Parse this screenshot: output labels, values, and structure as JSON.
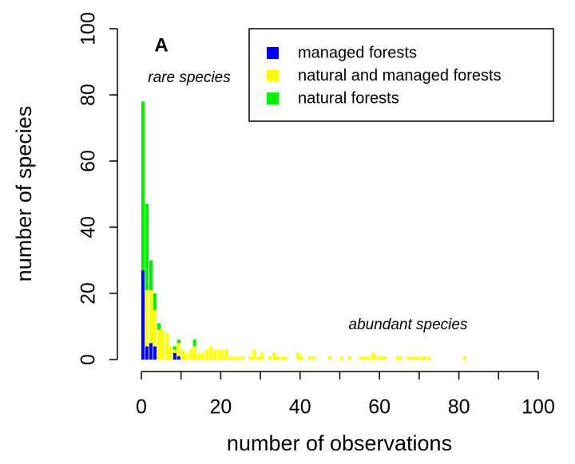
{
  "chart_data": {
    "type": "histogram",
    "title": "A",
    "annotations": [
      "rare species",
      "abundant species"
    ],
    "x_label": "number of observations",
    "y_label": "number of species",
    "bins": [
      0,
      1,
      2,
      3,
      4,
      5,
      6,
      7,
      8,
      9,
      10,
      11,
      12,
      13,
      14,
      15,
      16,
      17,
      18,
      19,
      20,
      21,
      22,
      23,
      24,
      25,
      26,
      27,
      28,
      29,
      30,
      31,
      32,
      33,
      34,
      35,
      36,
      37,
      38,
      39,
      40,
      41,
      42,
      43,
      44,
      45,
      46,
      47,
      48,
      49,
      50,
      51,
      52,
      53,
      54,
      55,
      56,
      57,
      58,
      59,
      60,
      61,
      62,
      63,
      64,
      65,
      66,
      67,
      68,
      69,
      70,
      71,
      72,
      73,
      74,
      75,
      76,
      77,
      78,
      79,
      80,
      81,
      82,
      83
    ],
    "stacked": true,
    "series": [
      {
        "name": "managed forests",
        "color": "#0000ff",
        "values": [
          27,
          4,
          5,
          4,
          0,
          0,
          0,
          0,
          2,
          1,
          0,
          0,
          0,
          0,
          0,
          0,
          0,
          0,
          0,
          0,
          0,
          0,
          0,
          0,
          0,
          0,
          0,
          0,
          0,
          0,
          0,
          0,
          0,
          0,
          0,
          0,
          0,
          0,
          0,
          0,
          0,
          0,
          0,
          0,
          0,
          0,
          0,
          0,
          0,
          0,
          0,
          0,
          0,
          0,
          0,
          0,
          0,
          0,
          0,
          0,
          0,
          0,
          0,
          0,
          0,
          0,
          0,
          0,
          0,
          0,
          0,
          0,
          0,
          0,
          0,
          0,
          0,
          0,
          0,
          0,
          0,
          0,
          0
        ]
      },
      {
        "name": "natural and managed forests",
        "color": "#ffff00",
        "values": [
          0,
          17,
          16,
          11,
          9,
          9,
          8,
          4,
          1,
          4,
          3,
          2,
          3,
          4,
          2,
          2,
          3,
          4,
          3,
          3,
          3,
          3,
          1,
          1,
          1,
          1,
          0,
          1,
          3,
          1,
          2,
          0,
          1,
          2,
          1,
          1,
          1,
          0,
          0,
          2,
          1,
          0,
          1,
          1,
          0,
          0,
          0,
          1,
          0,
          0,
          1,
          0,
          1,
          0,
          0,
          1,
          1,
          1,
          2,
          1,
          1,
          1,
          0,
          0,
          1,
          1,
          0,
          1,
          1,
          1,
          1,
          1,
          1,
          0,
          0,
          0,
          0,
          0,
          0,
          0,
          0,
          1,
          0
        ]
      },
      {
        "name": "natural forests",
        "color": "#00ee00",
        "values": [
          51,
          26,
          9,
          5,
          2,
          0,
          0,
          0,
          1,
          1,
          0,
          0,
          0,
          2,
          0,
          0,
          0,
          0,
          0,
          0,
          0,
          0,
          0,
          0,
          0,
          0,
          0,
          0,
          0,
          0,
          0,
          0,
          0,
          0,
          0,
          0,
          0,
          0,
          0,
          0,
          0,
          0,
          0,
          0,
          0,
          0,
          0,
          0,
          0,
          0,
          0,
          0,
          0,
          0,
          0,
          0,
          0,
          0,
          0,
          0,
          0,
          0,
          0,
          0,
          0,
          0,
          0,
          0,
          0,
          0,
          0,
          0,
          0,
          0,
          0,
          0,
          0,
          0,
          0,
          0,
          0,
          0,
          0
        ]
      }
    ],
    "xlim": [
      0,
      100
    ],
    "xticks": [
      0,
      20,
      40,
      60,
      80,
      100
    ],
    "xminor_ticks": [
      10,
      30,
      50,
      70,
      90
    ],
    "ylim": [
      0,
      100
    ],
    "yticks": [
      0,
      20,
      40,
      60,
      80,
      100
    ],
    "legend": "top-right",
    "grid": false
  }
}
